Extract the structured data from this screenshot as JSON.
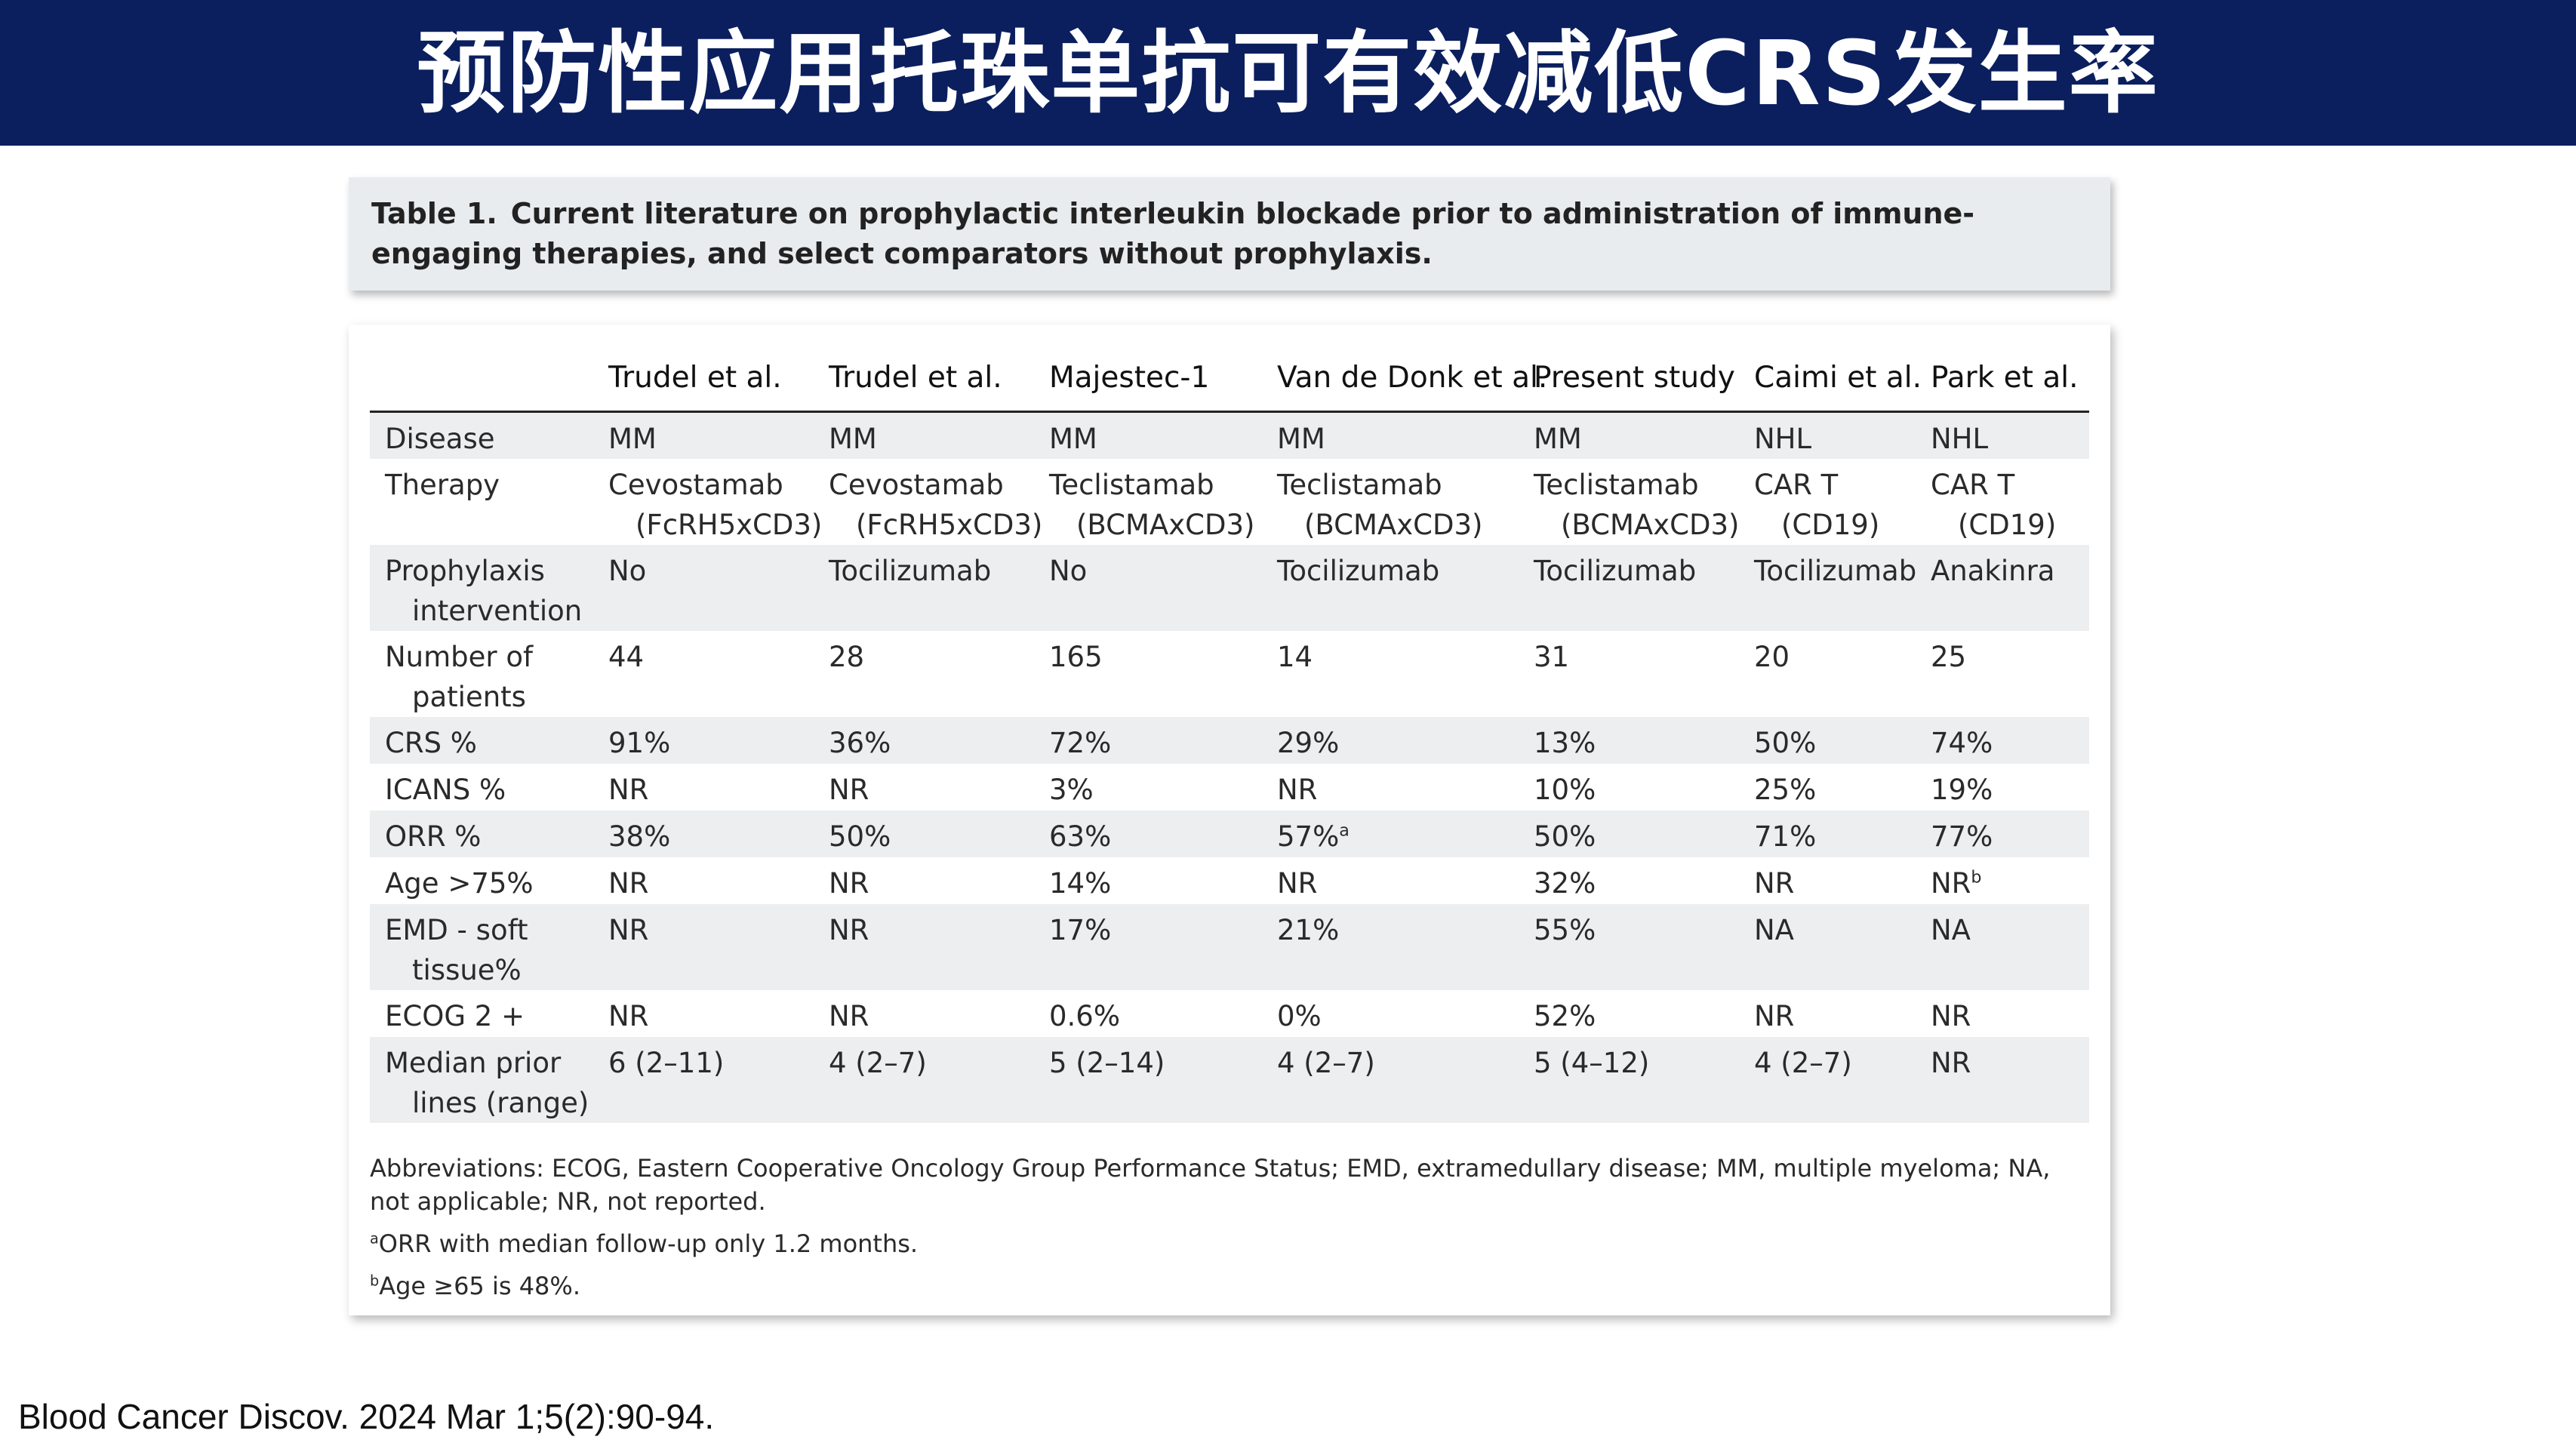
{
  "slide": {
    "title": "预防性应用托珠单抗可有效减低CRS发生率",
    "citation": "Blood Cancer Discov. 2024 Mar 1;5(2):90-94."
  },
  "table": {
    "label": "Table 1.",
    "caption": "Current literature on prophylactic interleukin blockade prior to administration of immune-engaging therapies, and select comparators without prophylaxis.",
    "columns": [
      "Trudel et al.",
      "Trudel et al.",
      "Majestec-1",
      "Van de Donk et al.",
      "Present study",
      "Caimi et al.",
      "Park et al."
    ],
    "rows": [
      {
        "label": [
          "Disease"
        ],
        "cells": [
          [
            "MM"
          ],
          [
            "MM"
          ],
          [
            "MM"
          ],
          [
            "MM"
          ],
          [
            "MM"
          ],
          [
            "NHL"
          ],
          [
            "NHL"
          ]
        ]
      },
      {
        "label": [
          "Therapy"
        ],
        "cells": [
          [
            "Cevostamab",
            "(FcRH5xCD3)"
          ],
          [
            "Cevostamab",
            "(FcRH5xCD3)"
          ],
          [
            "Teclistamab",
            "(BCMAxCD3)"
          ],
          [
            "Teclistamab",
            "(BCMAxCD3)"
          ],
          [
            "Teclistamab",
            "(BCMAxCD3)"
          ],
          [
            "CAR T",
            "(CD19)"
          ],
          [
            "CAR T",
            "(CD19)"
          ]
        ]
      },
      {
        "label": [
          "Prophylaxis",
          "intervention"
        ],
        "cells": [
          [
            "No"
          ],
          [
            "Tocilizumab"
          ],
          [
            "No"
          ],
          [
            "Tocilizumab"
          ],
          [
            "Tocilizumab"
          ],
          [
            "Tocilizumab"
          ],
          [
            "Anakinra"
          ]
        ]
      },
      {
        "label": [
          "Number of",
          "patients"
        ],
        "cells": [
          [
            "44"
          ],
          [
            "28"
          ],
          [
            "165"
          ],
          [
            "14"
          ],
          [
            "31"
          ],
          [
            "20"
          ],
          [
            "25"
          ]
        ]
      },
      {
        "label": [
          "CRS %"
        ],
        "cells": [
          [
            "91%"
          ],
          [
            "36%"
          ],
          [
            "72%"
          ],
          [
            "29%"
          ],
          [
            "13%"
          ],
          [
            "50%"
          ],
          [
            "74%"
          ]
        ]
      },
      {
        "label": [
          "ICANS %"
        ],
        "cells": [
          [
            "NR"
          ],
          [
            "NR"
          ],
          [
            "3%"
          ],
          [
            "NR"
          ],
          [
            "10%"
          ],
          [
            "25%"
          ],
          [
            "19%"
          ]
        ]
      },
      {
        "label": [
          "ORR %"
        ],
        "cells": [
          [
            "38%"
          ],
          [
            "50%"
          ],
          [
            "63%"
          ],
          [
            "57%"
          ],
          [
            "50%"
          ],
          [
            "71%"
          ],
          [
            "77%"
          ]
        ]
      },
      {
        "label": [
          "Age >75%"
        ],
        "cells": [
          [
            "NR"
          ],
          [
            "NR"
          ],
          [
            "14%"
          ],
          [
            "NR"
          ],
          [
            "32%"
          ],
          [
            "NR"
          ],
          [
            "NR"
          ]
        ]
      },
      {
        "label": [
          "EMD - soft",
          "tissue%"
        ],
        "cells": [
          [
            "NR"
          ],
          [
            "NR"
          ],
          [
            "17%"
          ],
          [
            "21%"
          ],
          [
            "55%"
          ],
          [
            "NA"
          ],
          [
            "NA"
          ]
        ]
      },
      {
        "label": [
          "ECOG 2 +"
        ],
        "cells": [
          [
            "NR"
          ],
          [
            "NR"
          ],
          [
            "0.6%"
          ],
          [
            "0%"
          ],
          [
            "52%"
          ],
          [
            "NR"
          ],
          [
            "NR"
          ]
        ]
      },
      {
        "label": [
          "Median prior",
          "lines (range)"
        ],
        "cells": [
          [
            "6 (2–11)"
          ],
          [
            "4 (2–7)"
          ],
          [
            "5 (2–14)"
          ],
          [
            "4 (2–7)"
          ],
          [
            "5 (4–12)"
          ],
          [
            "4 (2–7)"
          ],
          [
            "NR"
          ]
        ]
      }
    ],
    "superscripts": [
      {
        "row": 6,
        "col": 3,
        "mark": "a"
      },
      {
        "row": 7,
        "col": 6,
        "mark": "b"
      }
    ],
    "footnotes": {
      "abbreviations": "Abbreviations: ECOG, Eastern Cooperative Oncology Group Performance Status; EMD, extramedullary disease; MM, multiple myeloma; NA, not applicable; NR, not reported.",
      "a_mark": "a",
      "a_text": "ORR with median follow-up only 1.2 months.",
      "b_mark": "b",
      "b_text": "Age ≥65 is 48%."
    }
  }
}
